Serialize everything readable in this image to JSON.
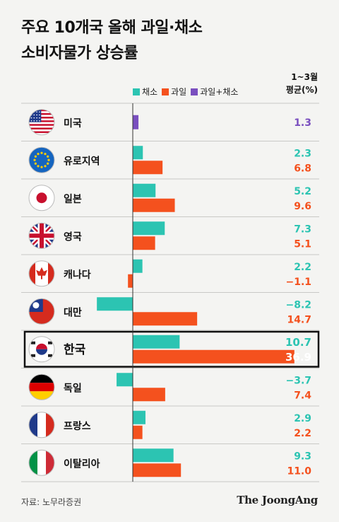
{
  "header": {
    "title_line1": "주요 10개국 올해 과일·채소",
    "title_line2": "소비자물가 상승률",
    "unit_line1": "1~3월",
    "unit_line2": "평균(%)"
  },
  "footer": {
    "source": "자료: 노무라증권",
    "brand": "The JoongAng"
  },
  "colors": {
    "vegetables": "#2cc4b2",
    "fruit": "#f4511e",
    "combined": "#7a4fbf",
    "highlight_border": "#111111"
  },
  "chart_data": {
    "type": "bar",
    "orientation": "horizontal",
    "title": "주요 10개국 올해 과일·채소 소비자물가 상승률",
    "unit": "1~3월 평균(%)",
    "legend_placement": "top",
    "categories": [
      "미국",
      "유로지역",
      "일본",
      "영국",
      "캐나다",
      "대만",
      "한국",
      "독일",
      "프랑스",
      "이탈리아"
    ],
    "flags": [
      "us",
      "eu",
      "jp",
      "uk",
      "ca",
      "tw",
      "kr",
      "de",
      "fr",
      "it"
    ],
    "highlight": "한국",
    "series": [
      {
        "name": "채소",
        "key": "vegetables",
        "values": [
          null,
          2.3,
          5.2,
          7.3,
          2.2,
          -8.2,
          10.7,
          -3.7,
          2.9,
          9.3
        ]
      },
      {
        "name": "과일",
        "key": "fruit",
        "values": [
          null,
          6.8,
          9.6,
          5.1,
          -1.1,
          14.7,
          36.9,
          7.4,
          2.2,
          11.0
        ]
      },
      {
        "name": "과일+채소",
        "key": "combined",
        "values": [
          1.3,
          null,
          null,
          null,
          null,
          null,
          null,
          null,
          null,
          null
        ]
      }
    ],
    "value_labels": {
      "vegetables": [
        null,
        "2.3",
        "5.2",
        "7.3",
        "2.2",
        "−8.2",
        "10.7",
        "−3.7",
        "2.9",
        "9.3"
      ],
      "fruit": [
        null,
        "6.8",
        "9.6",
        "5.1",
        "−1.1",
        "14.7",
        "36.9",
        "7.4",
        "2.2",
        "11.0"
      ],
      "combined": [
        "1.3",
        null,
        null,
        null,
        null,
        null,
        null,
        null,
        null,
        null
      ]
    }
  }
}
